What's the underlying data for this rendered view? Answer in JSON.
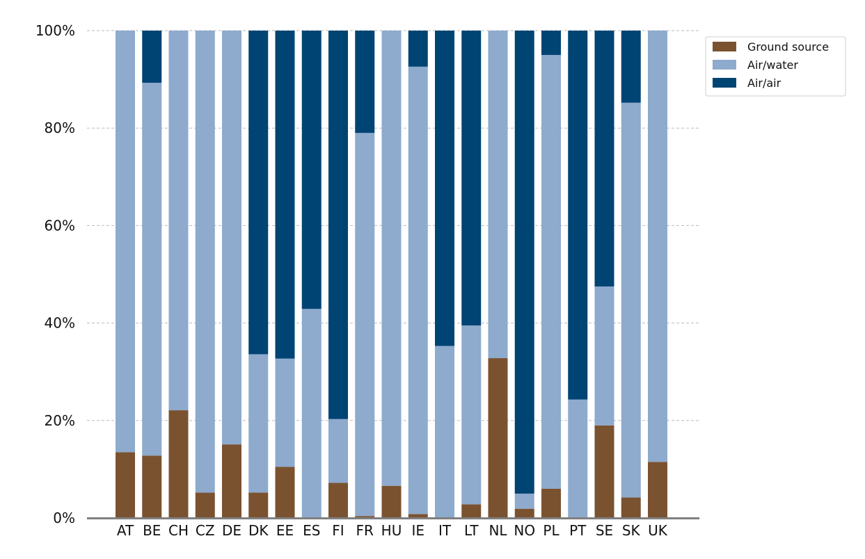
{
  "chart_data": {
    "type": "bar",
    "stacked": true,
    "categories": [
      "AT",
      "BE",
      "CH",
      "CZ",
      "DE",
      "DK",
      "EE",
      "ES",
      "FI",
      "FR",
      "HU",
      "IE",
      "IT",
      "LT",
      "NL",
      "NO",
      "PL",
      "PT",
      "SE",
      "SK",
      "UK"
    ],
    "series": [
      {
        "name": "Ground source",
        "color": "#7a5230",
        "values": [
          13.5,
          12.8,
          22.1,
          5.2,
          15.1,
          5.2,
          10.5,
          0,
          7.2,
          0.4,
          6.6,
          0.8,
          0,
          2.8,
          32.8,
          1.9,
          6.0,
          0,
          19.0,
          4.2,
          11.5
        ]
      },
      {
        "name": "Air/water",
        "color": "#8eaacd",
        "values": [
          86.5,
          76.5,
          77.9,
          94.8,
          84.9,
          28.4,
          22.2,
          42.9,
          13.1,
          78.6,
          93.4,
          91.8,
          35.3,
          36.7,
          67.2,
          3.1,
          89.0,
          24.3,
          28.5,
          81.0,
          88.5
        ]
      },
      {
        "name": "Air/air",
        "color": "#004473",
        "values": [
          0,
          10.7,
          0,
          0,
          0,
          66.4,
          67.3,
          57.1,
          79.7,
          21.0,
          0,
          7.4,
          64.7,
          60.5,
          0,
          95.0,
          5.0,
          75.7,
          52.5,
          14.8,
          0
        ]
      }
    ],
    "y_ticks": [
      "0%",
      "20%",
      "40%",
      "60%",
      "80%",
      "100%"
    ],
    "ylim": [
      0,
      100
    ],
    "grid": "horizontal-dashed",
    "legend": "top-right",
    "title": "",
    "xlabel": "",
    "ylabel": ""
  }
}
